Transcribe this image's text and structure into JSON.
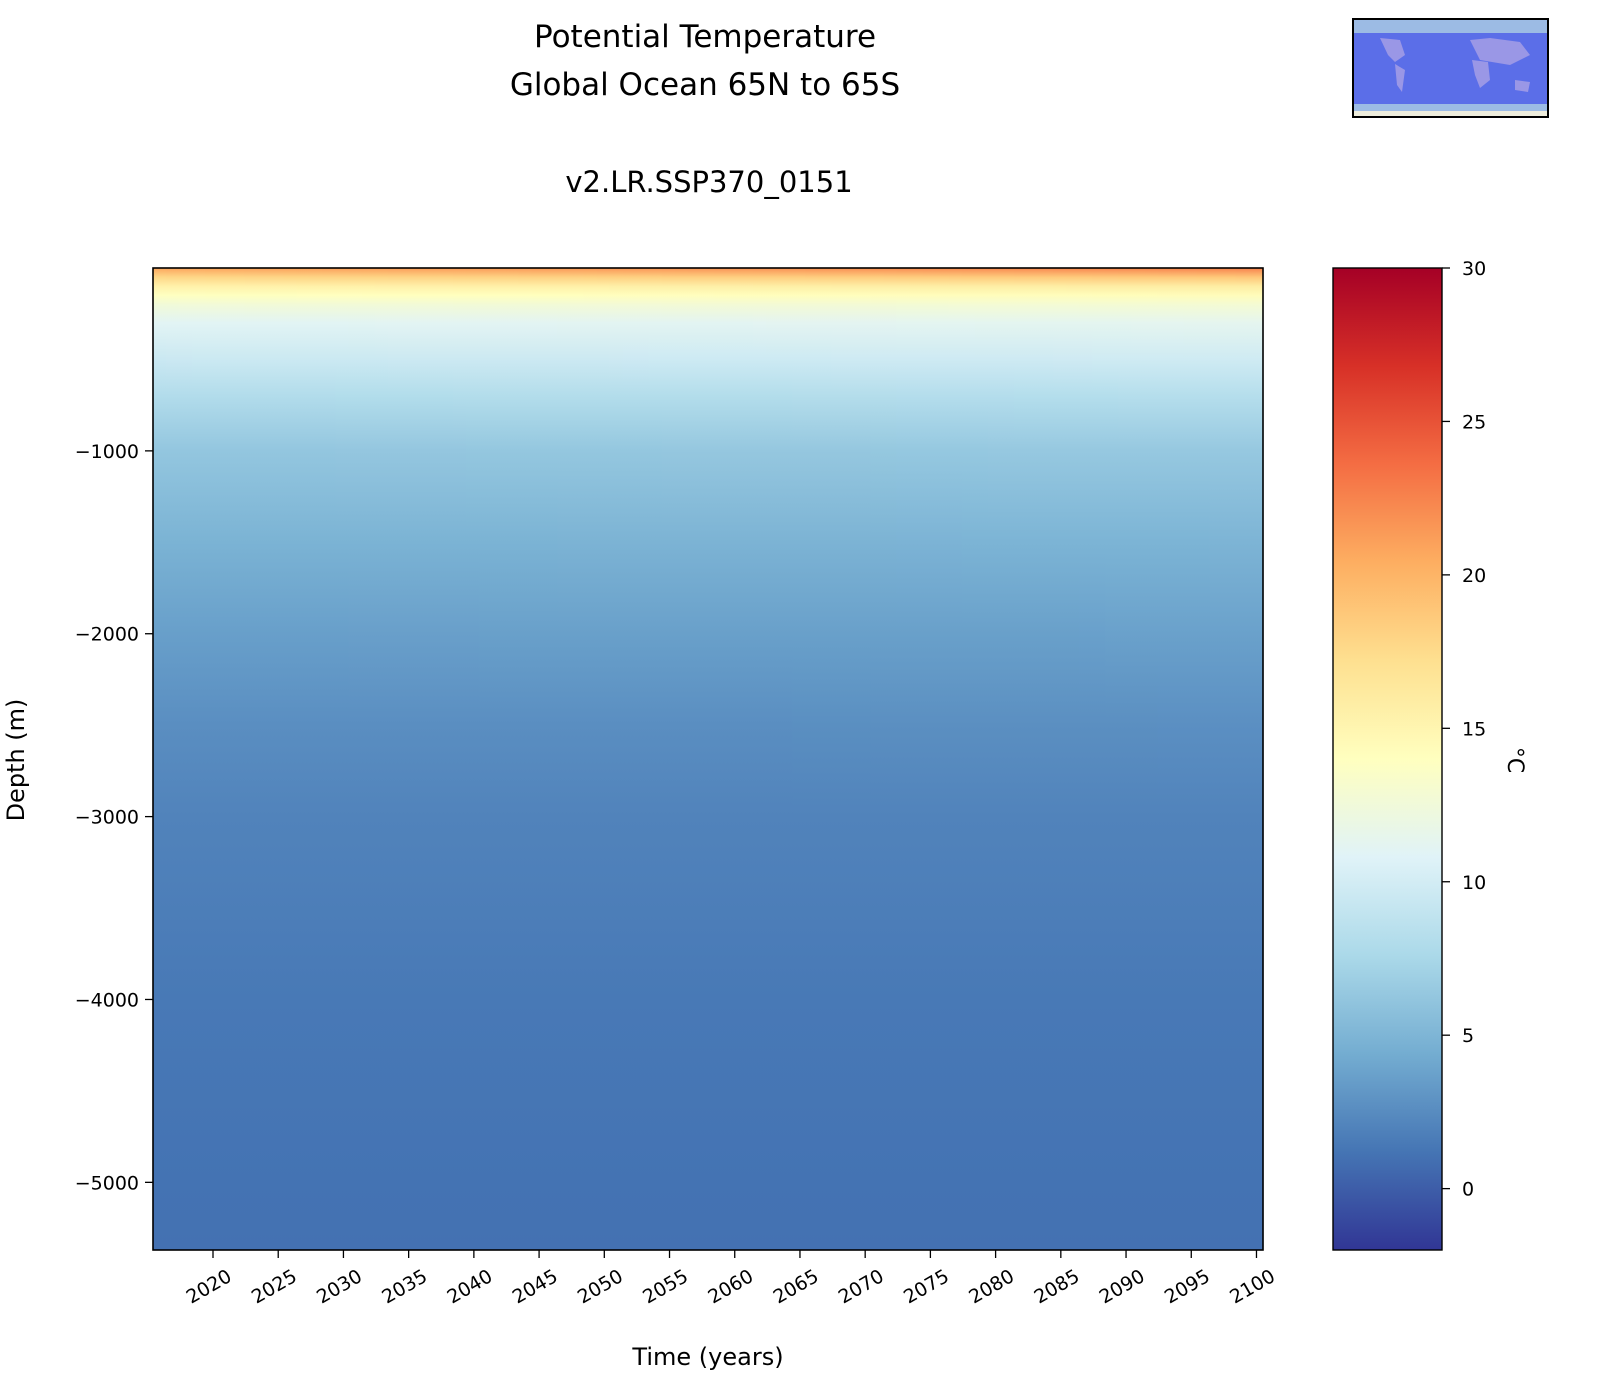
{
  "chart_data": {
    "type": "heatmap",
    "title_lines": [
      "Potential Temperature",
      "Global Ocean 65N to 65S"
    ],
    "subtitle": "v2.LR.SSP370_0151",
    "xlabel": "Time (years)",
    "ylabel": "Depth (m)",
    "xlim": [
      2015.4,
      2100.5
    ],
    "ylim": [
      -5370,
      0
    ],
    "xticks": [
      2020,
      2025,
      2030,
      2035,
      2040,
      2045,
      2050,
      2055,
      2060,
      2065,
      2070,
      2075,
      2080,
      2085,
      2090,
      2095,
      2100
    ],
    "yticks": [
      -1000,
      -2000,
      -3000,
      -4000,
      -5000
    ],
    "colormap": "RdYlBu_r",
    "colorbar": {
      "label": "°C",
      "range": [
        -2,
        30
      ],
      "ticks": [
        0,
        5,
        10,
        15,
        20,
        25,
        30
      ]
    },
    "depths": [
      0,
      -50,
      -100,
      -150,
      -200,
      -300,
      -500,
      -700,
      -1000,
      -1500,
      -2000,
      -2500,
      -3000,
      -4000,
      -5000,
      -5370
    ],
    "temperature_start": [
      20.8,
      17.8,
      15.4,
      13.9,
      12.6,
      11.0,
      9.5,
      8.0,
      6.2,
      4.8,
      3.6,
      2.6,
      2.0,
      1.4,
      1.1,
      1.0
    ],
    "temperature_end": [
      22.6,
      18.8,
      15.9,
      14.3,
      12.9,
      11.3,
      9.8,
      8.2,
      6.4,
      4.9,
      3.7,
      2.7,
      2.0,
      1.4,
      1.1,
      1.0
    ],
    "years_start": 2015.4,
    "years_end": 2100.5,
    "grid": false
  },
  "inset_map": {
    "description_colors": {
      "ocean_selected": "#5b6ee8",
      "land": "#eeeddc",
      "ocean": "#9cbbe4"
    }
  }
}
